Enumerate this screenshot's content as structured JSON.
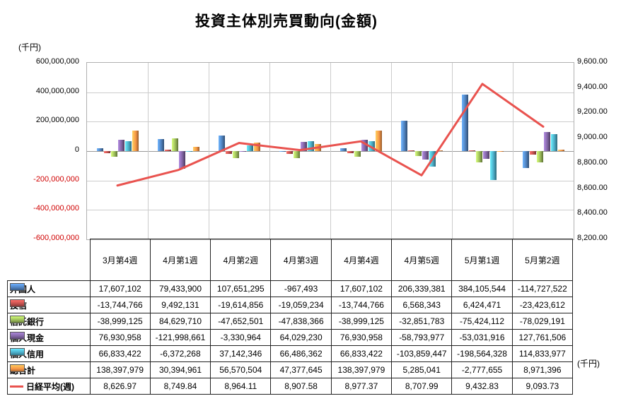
{
  "title": "投資主体別売買動向(金額)",
  "axis_unit_left": "(千円)",
  "axis_unit_right": "(千円)",
  "chart_data": {
    "type": "bar",
    "title": "投資主体別売買動向(金額)",
    "categories": [
      "3月第4週",
      "4月第1週",
      "4月第2週",
      "4月第3週",
      "4月第4週",
      "4月第5週",
      "5月第1週",
      "5月第2週"
    ],
    "series": [
      {
        "name": "外国人",
        "color": "#4f81bd",
        "values": [
          17607102,
          79433900,
          107651295,
          -967493,
          17607102,
          206339381,
          384105544,
          -114727522
        ]
      },
      {
        "name": "投信",
        "color": "#c0504d",
        "values": [
          -13744766,
          9492131,
          -19614856,
          -19059234,
          -13744766,
          6568343,
          6424471,
          -23423612
        ]
      },
      {
        "name": "信託銀行",
        "color": "#9bbb59",
        "values": [
          -38999125,
          84629710,
          -47652501,
          -47838366,
          -38999125,
          -32851783,
          -75424112,
          -78029191
        ]
      },
      {
        "name": "個人現金",
        "color": "#8064a2",
        "values": [
          76930958,
          -121998661,
          -3330964,
          64029230,
          76930958,
          -58793977,
          -53031916,
          127761506
        ]
      },
      {
        "name": "個人信用",
        "color": "#4bacc6",
        "values": [
          66833422,
          -6372268,
          37142346,
          66486362,
          66833422,
          -103859447,
          -198564328,
          114833977
        ]
      },
      {
        "name": "総合計",
        "color": "#f79646",
        "values": [
          138397979,
          30394961,
          56570504,
          47377645,
          138397979,
          5285041,
          -2777655,
          8971396
        ]
      }
    ],
    "line_series": {
      "name": "日経平均(週)",
      "color": "#e9534f",
      "values": [
        8626.97,
        8749.84,
        8964.11,
        8907.58,
        8977.37,
        8707.99,
        9432.83,
        9093.73
      ]
    },
    "left_axis": {
      "min": -600000000,
      "max": 600000000,
      "step": 200000000,
      "unit": "(千円)",
      "negative_color": "#d00000"
    },
    "right_axis": {
      "min": 8200,
      "max": 9600,
      "step": 200
    },
    "grid": true,
    "legend_position": "table"
  }
}
